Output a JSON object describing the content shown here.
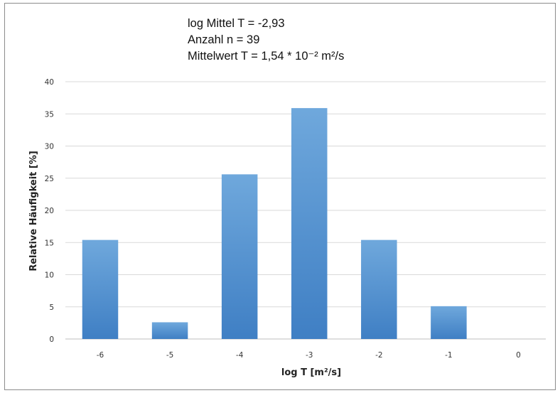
{
  "stats": {
    "line1": "log Mittel T =  -2,93",
    "line2": "Anzahl  n = 39",
    "line3": "Mittelwert  T = 1,54 * 10⁻² m²/s"
  },
  "chart_data": {
    "type": "bar",
    "categories": [
      "-6",
      "-5",
      "-4",
      "-3",
      "-2",
      "-1",
      "0"
    ],
    "values": [
      15.4,
      2.6,
      25.6,
      35.9,
      15.4,
      5.1,
      0
    ],
    "xlabel": "log T [m²/s]",
    "ylabel": "Relative Häufigkeit [%]",
    "ylim": [
      0,
      40
    ],
    "yticks": [
      "0",
      "5",
      "10",
      "15",
      "20",
      "25",
      "30",
      "35",
      "40"
    ],
    "grid": true,
    "bar_color": "#5b9bd5"
  }
}
